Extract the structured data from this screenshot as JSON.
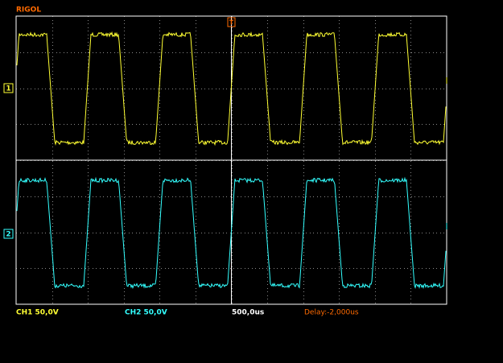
{
  "header": {
    "brand": "RIGOL"
  },
  "markers": {
    "ch1": "1",
    "ch2": "2",
    "trigger": "T"
  },
  "status": {
    "ch1": "CH1 50,0V",
    "ch2": "CH2 50,0V",
    "timebase": "500,0us",
    "delay": "Delay:-2,000us"
  }
}
